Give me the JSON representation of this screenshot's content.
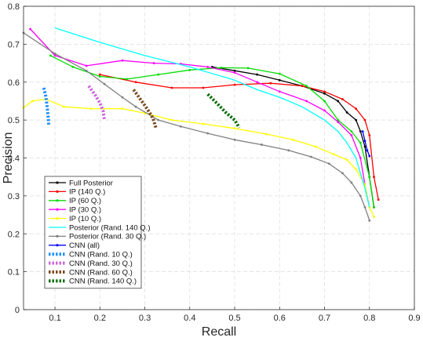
{
  "chart_data": {
    "type": "line",
    "title": "",
    "xlabel": "Recall",
    "ylabel": "Precision",
    "xlim": [
      0.03,
      0.9
    ],
    "ylim": [
      0,
      0.8
    ],
    "xticks": [
      "0.1",
      "0.2",
      "0.3",
      "0.4",
      "0.5",
      "0.6",
      "0.7",
      "0.8",
      "0.9"
    ],
    "yticks": [
      "0",
      "0.1",
      "0.2",
      "0.3",
      "0.4",
      "0.5",
      "0.6",
      "0.7",
      "0.8"
    ],
    "grid": true,
    "legend_position": "bottom-left",
    "series": [
      {
        "name": "Full Posterior",
        "color": "#000000",
        "style": "solid-marker",
        "x": [
          0.45,
          0.5,
          0.55,
          0.6,
          0.65,
          0.7,
          0.73,
          0.75,
          0.77,
          0.78,
          0.79,
          0.8,
          0.81
        ],
        "y": [
          0.64,
          0.63,
          0.62,
          0.605,
          0.59,
          0.57,
          0.55,
          0.52,
          0.5,
          0.47,
          0.43,
          0.35,
          0.27
        ]
      },
      {
        "name": "IP (140 Q.)",
        "color": "#ff0000",
        "style": "solid-marker",
        "x": [
          0.2,
          0.28,
          0.36,
          0.43,
          0.5,
          0.58,
          0.65,
          0.7,
          0.74,
          0.77,
          0.79,
          0.8,
          0.81,
          0.82
        ],
        "y": [
          0.62,
          0.6,
          0.585,
          0.585,
          0.593,
          0.597,
          0.59,
          0.575,
          0.555,
          0.53,
          0.5,
          0.46,
          0.35,
          0.29
        ]
      },
      {
        "name": "IP (60 Q.)",
        "color": "#00dd00",
        "style": "solid-marker",
        "x": [
          0.09,
          0.14,
          0.2,
          0.26,
          0.33,
          0.4,
          0.47,
          0.53,
          0.6,
          0.66,
          0.7,
          0.73,
          0.76,
          0.78,
          0.8,
          0.81
        ],
        "y": [
          0.67,
          0.64,
          0.615,
          0.608,
          0.62,
          0.632,
          0.638,
          0.637,
          0.622,
          0.59,
          0.55,
          0.5,
          0.47,
          0.44,
          0.35,
          0.27
        ]
      },
      {
        "name": "IP (30 Q.)",
        "color": "#ff00ff",
        "style": "solid-marker",
        "x": [
          0.045,
          0.1,
          0.17,
          0.25,
          0.32,
          0.38,
          0.44,
          0.5,
          0.55,
          0.6,
          0.66,
          0.7,
          0.73,
          0.76,
          0.78,
          0.79,
          0.8
        ],
        "y": [
          0.74,
          0.67,
          0.643,
          0.657,
          0.65,
          0.648,
          0.64,
          0.625,
          0.6,
          0.575,
          0.55,
          0.525,
          0.495,
          0.46,
          0.4,
          0.33,
          0.27
        ]
      },
      {
        "name": "IP (10 Q.)",
        "color": "#ffff00",
        "style": "solid-marker",
        "x": [
          0.03,
          0.05,
          0.08,
          0.12,
          0.18,
          0.25,
          0.3,
          0.36,
          0.43,
          0.5,
          0.57,
          0.63,
          0.68,
          0.72,
          0.75,
          0.77,
          0.79,
          0.8,
          0.81
        ],
        "y": [
          0.533,
          0.55,
          0.555,
          0.535,
          0.53,
          0.53,
          0.518,
          0.5,
          0.49,
          0.478,
          0.463,
          0.448,
          0.43,
          0.41,
          0.395,
          0.37,
          0.33,
          0.27,
          0.245
        ]
      },
      {
        "name": "Posterior (Rand. 140 Q.)",
        "color": "#00ffff",
        "style": "solid",
        "x": [
          0.1,
          0.2,
          0.3,
          0.4,
          0.5,
          0.55,
          0.6,
          0.65,
          0.7,
          0.73,
          0.75,
          0.77,
          0.78,
          0.79,
          0.8
        ],
        "y": [
          0.743,
          0.705,
          0.67,
          0.64,
          0.605,
          0.58,
          0.56,
          0.535,
          0.5,
          0.47,
          0.44,
          0.4,
          0.36,
          0.32,
          0.27
        ]
      },
      {
        "name": "Posterior (Rand. 30 Q.)",
        "color": "#808080",
        "style": "solid-marker",
        "x": [
          0.03,
          0.1,
          0.17,
          0.21,
          0.25,
          0.28,
          0.33,
          0.38,
          0.44,
          0.5,
          0.56,
          0.62,
          0.67,
          0.71,
          0.74,
          0.76,
          0.78,
          0.79,
          0.8
        ],
        "y": [
          0.73,
          0.675,
          0.63,
          0.595,
          0.56,
          0.535,
          0.5,
          0.483,
          0.465,
          0.448,
          0.435,
          0.42,
          0.403,
          0.385,
          0.36,
          0.335,
          0.3,
          0.27,
          0.235
        ]
      },
      {
        "name": "CNN (all)",
        "color": "#0000ff",
        "style": "solid-marker",
        "x": [
          0.785,
          0.79,
          0.795,
          0.8
        ],
        "y": [
          0.47,
          0.445,
          0.42,
          0.405
        ]
      },
      {
        "name": "CNN (Rand. 10 Q.)",
        "color": "#1e90ff",
        "style": "dotted",
        "x": [
          0.075,
          0.08,
          0.083,
          0.085,
          0.086
        ],
        "y": [
          0.585,
          0.56,
          0.53,
          0.505,
          0.485
        ]
      },
      {
        "name": "CNN (Rand. 30 Q.)",
        "color": "#cc66dd",
        "style": "dotted",
        "x": [
          0.175,
          0.19,
          0.2,
          0.207,
          0.21
        ],
        "y": [
          0.59,
          0.565,
          0.545,
          0.525,
          0.5
        ]
      },
      {
        "name": "CNN (Rand. 60 Q.)",
        "color": "#7a4a1e",
        "style": "dotted",
        "x": [
          0.275,
          0.29,
          0.305,
          0.318,
          0.325
        ],
        "y": [
          0.58,
          0.555,
          0.53,
          0.505,
          0.478
        ]
      },
      {
        "name": "CNN (Rand. 140 Q.)",
        "color": "#0a6e0a",
        "style": "dotted",
        "x": [
          0.44,
          0.46,
          0.48,
          0.5,
          0.51
        ],
        "y": [
          0.568,
          0.545,
          0.52,
          0.5,
          0.48
        ]
      }
    ]
  }
}
